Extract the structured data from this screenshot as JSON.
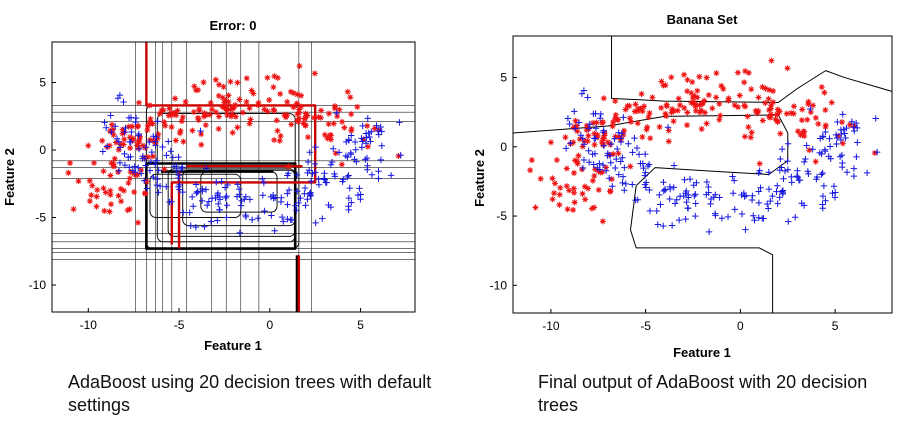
{
  "colors": {
    "class_a": "#ee1111",
    "class_b": "#1515e0",
    "boundary": "#000000",
    "grid": "#222222"
  },
  "captions": {
    "left": "AdaBoost using 20 decision trees with default settings",
    "right": "Final output of AdaBoost with 20 decision trees"
  },
  "chart_data": [
    {
      "type": "scatter",
      "title": "Error: 0",
      "xlabel": "Feature 1",
      "ylabel": "Feature 2",
      "xlim": [
        -12,
        8
      ],
      "ylim": [
        -12,
        8
      ],
      "xticks": [
        -10,
        -5,
        0,
        5
      ],
      "yticks": [
        5,
        0,
        -5,
        -10
      ],
      "series": [
        {
          "marker": "asterisk",
          "color": "#ee1111",
          "count": 250,
          "shape": "arc",
          "center": [
            -1.5,
            -4
          ],
          "radius": 7.5,
          "angle_range": [
            35,
            180
          ],
          "spread": 1.3
        },
        {
          "marker": "plus",
          "color": "#1515e0",
          "count": 250,
          "shape": "arc",
          "center": [
            -1,
            2.5
          ],
          "radius": 6.5,
          "angle_range": [
            180,
            355
          ],
          "spread": 1.3
        }
      ],
      "decision_trees": 20,
      "legend": "none",
      "grid": false
    },
    {
      "type": "scatter",
      "title": "Banana Set",
      "xlabel": "Feature 1",
      "ylabel": "Feature 2",
      "xlim": [
        -12,
        8
      ],
      "ylim": [
        -12,
        8
      ],
      "xticks": [
        -10,
        -5,
        0,
        5
      ],
      "yticks": [
        5,
        0,
        -5,
        -10
      ],
      "series": [
        {
          "marker": "asterisk",
          "color": "#ee1111",
          "count": 250,
          "shape": "arc",
          "center": [
            -1.5,
            -4
          ],
          "radius": 7.5,
          "angle_range": [
            35,
            180
          ],
          "spread": 1.3
        },
        {
          "marker": "plus",
          "color": "#1515e0",
          "count": 250,
          "shape": "arc",
          "center": [
            -1,
            2.5
          ],
          "radius": 6.5,
          "angle_range": [
            180,
            355
          ],
          "spread": 1.3
        }
      ],
      "boundary": [
        [
          -6.8,
          8
        ],
        [
          -6.8,
          3.5
        ],
        [
          -4,
          3.3
        ],
        [
          2,
          3.2
        ],
        [
          3,
          4.2
        ],
        [
          4.5,
          5.5
        ],
        [
          5.5,
          5
        ],
        [
          8,
          4
        ],
        [
          8,
          -12
        ],
        [
          1.7,
          -12
        ],
        [
          1.7,
          -7.8
        ],
        [
          1,
          -7.3
        ],
        [
          -5.5,
          -7.3
        ],
        [
          -5.8,
          -6
        ],
        [
          -5.5,
          -2.8
        ],
        [
          -4.5,
          -1.5
        ],
        [
          -1,
          -1.8
        ],
        [
          1.5,
          -2
        ],
        [
          2.5,
          -1
        ],
        [
          2.5,
          1
        ],
        [
          2,
          2.3
        ],
        [
          -4,
          2.2
        ],
        [
          -7,
          1.5
        ],
        [
          -12,
          1
        ],
        [
          -12,
          8
        ]
      ],
      "legend": "none",
      "grid": false
    }
  ]
}
